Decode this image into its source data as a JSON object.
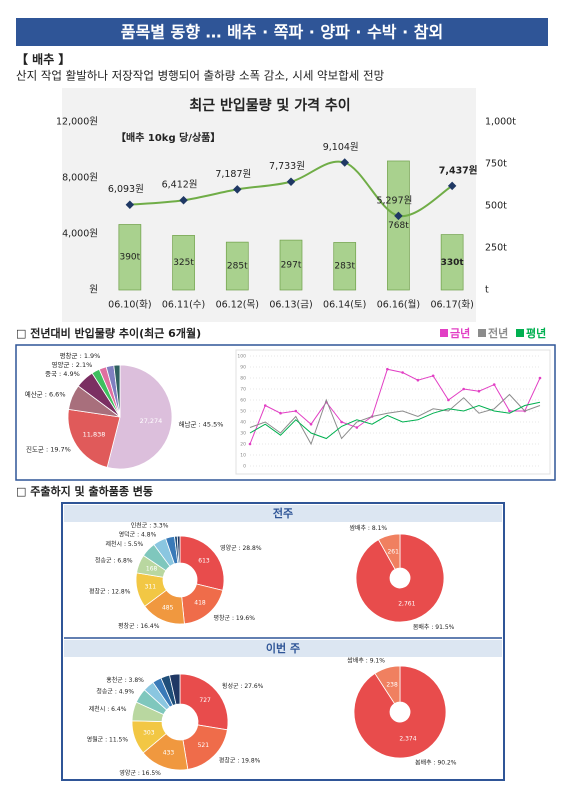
{
  "header": {
    "title": "품목별 동향 … 배추 · 쪽파 · 양파 · 수박 · 참외"
  },
  "section_title": "【 배추 】",
  "summary": "산지 작업 활발하나 저장작업 병행되어 출하량 소폭 감소, 시세 약보합세 전망",
  "section2_title": "□ 전년대비 반입물량 추이(최근 6개월)",
  "section3_title": "□ 주출하지 및 출하품종 변동",
  "panels": [
    "전주",
    "이번 주"
  ],
  "chart_data": [
    {
      "type": "combo",
      "title": "최근 반입물량 및 가격 추이",
      "note": "【배추 10kg 당/상품】",
      "categories": [
        "06.10(화)",
        "06.11(수)",
        "06.12(목)",
        "06.13(금)",
        "06.14(토)",
        "06.16(월)",
        "06.17(화)"
      ],
      "series": [
        {
          "type": "bar",
          "axis": "y2",
          "color": "#a9d18e",
          "values": [
            390,
            325,
            285,
            297,
            283,
            768,
            330
          ],
          "value_labels": [
            "390t",
            "325t",
            "285t",
            "297t",
            "283t",
            "768t",
            "330t"
          ]
        },
        {
          "type": "line",
          "color": "#70ad47",
          "marker_color": "#1f3864",
          "values": [
            6093,
            6412,
            7187,
            7733,
            9104,
            5297,
            7437
          ],
          "value_labels": [
            "6,093원",
            "6,412원",
            "7,187원",
            "7,733원",
            "9,104원",
            "5,297원",
            "7,437원"
          ]
        }
      ],
      "ylim": [
        0,
        12000
      ],
      "yticks": [
        {
          "value": 0,
          "label": "원"
        },
        {
          "value": 4000,
          "label": "4,000원"
        },
        {
          "value": 8000,
          "label": "8,000원"
        },
        {
          "value": 12000,
          "label": "12,000원"
        }
      ],
      "y2lim": [
        0,
        1000
      ],
      "y2ticks": [
        {
          "value": 0,
          "label": "t"
        },
        {
          "value": 250,
          "label": "250t"
        },
        {
          "value": 500,
          "label": "500t"
        },
        {
          "value": 750,
          "label": "750t"
        },
        {
          "value": 1000,
          "label": "1,000t"
        }
      ],
      "bold_last": true
    },
    {
      "type": "pie",
      "categories": [
        "해남군 : 45.5%",
        "진도군 : 19.7%",
        "예산군 : 6.6%",
        "중국 : 4.9%",
        "영양군 : 2.1%",
        "평창군 : 1.9%",
        null,
        null
      ],
      "values": [
        45.5,
        19.7,
        6.6,
        4.9,
        2.1,
        1.9,
        2.0,
        1.6
      ],
      "inner_labels": [
        "27,274",
        "11,838",
        null,
        null,
        null,
        null,
        null,
        null
      ],
      "colors": [
        "#dcbfdc",
        "#e05a5a",
        "#a86f7c",
        "#7b2f62",
        "#3fbf5f",
        "#e06fa0",
        "#7f7fc0",
        "#2f6060"
      ]
    },
    {
      "type": "line",
      "legend": "top-right",
      "categories": [
        null,
        null,
        null,
        null,
        null,
        null,
        null,
        null,
        null,
        null,
        null,
        null,
        null,
        null,
        null,
        null,
        null,
        null,
        null,
        null
      ],
      "series": [
        {
          "name": "금년",
          "color": "#e23fc4",
          "values": [
            20,
            55,
            48,
            50,
            38,
            58,
            40,
            35,
            45,
            88,
            85,
            78,
            82,
            60,
            70,
            68,
            74,
            50,
            50,
            80
          ]
        },
        {
          "name": "전년",
          "color": "#8c8c8c",
          "values": [
            35,
            40,
            30,
            45,
            20,
            60,
            25,
            40,
            45,
            48,
            50,
            45,
            52,
            50,
            62,
            48,
            52,
            65,
            50,
            55
          ]
        },
        {
          "name": "평년",
          "color": "#00b050",
          "values": [
            30,
            38,
            28,
            42,
            30,
            25,
            36,
            42,
            38,
            46,
            40,
            42,
            48,
            52,
            50,
            55,
            50,
            48,
            55,
            58
          ]
        }
      ],
      "ylim": [
        0,
        100
      ],
      "yticks": [
        0,
        10,
        20,
        30,
        40,
        50,
        60,
        70,
        80,
        90,
        100
      ],
      "grid": true
    },
    {
      "type": "donut",
      "categories": [
        "영양군 : 28.8%",
        "평창군 : 19.6%",
        "평창군 : 16.4%",
        "평창군 : 12.8%",
        "청송군 : 6.8%",
        "제천시 : 5.5%",
        "영덕군 : 4.8%",
        "인천군 : 3.3%",
        null,
        null
      ],
      "values": [
        28.8,
        19.6,
        16.4,
        12.8,
        6.8,
        5.5,
        4.8,
        3.3,
        1.0,
        1.0
      ],
      "inner_labels": [
        "613",
        "418",
        "485",
        "311",
        "168",
        null,
        null,
        null,
        null,
        null
      ],
      "colors": [
        "#e84c4c",
        "#ef6c4a",
        "#f0983f",
        "#f2c744",
        "#b9d7a0",
        "#7fc7bd",
        "#8ac6e0",
        "#3a7ab8",
        "#1f4e79",
        "#203864"
      ]
    },
    {
      "type": "donut",
      "categories": [
        "봄배추 : 91.5%",
        "쌈배추 : 8.1%"
      ],
      "values": [
        91.5,
        8.1
      ],
      "inner_labels": [
        "2,761",
        "261"
      ],
      "colors": [
        "#e84c4c",
        "#f08060"
      ]
    },
    {
      "type": "donut",
      "categories": [
        "횡성군 : 27.6%",
        "평창군 : 19.8%",
        "영양군 : 16.5%",
        "영월군 : 11.5%",
        "제천시 : 6.4%",
        "청송군 : 4.9%",
        "홍천군 : 3.8%",
        null,
        null,
        null
      ],
      "values": [
        27.6,
        19.8,
        16.5,
        11.5,
        6.4,
        4.9,
        3.8,
        3.0,
        3.0,
        3.5
      ],
      "inner_labels": [
        "727",
        "521",
        "433",
        "303",
        null,
        null,
        null,
        null,
        null,
        null
      ],
      "colors": [
        "#e84c4c",
        "#ef6c4a",
        "#f0983f",
        "#f2c744",
        "#b9d7a0",
        "#7fc7bd",
        "#8ac6e0",
        "#3a7ab8",
        "#1f4e79",
        "#203864"
      ]
    },
    {
      "type": "donut",
      "categories": [
        "봄배추 : 90.2%",
        "쌈배추 : 9.1%"
      ],
      "values": [
        90.2,
        9.1
      ],
      "inner_labels": [
        "2,374",
        "238"
      ],
      "colors": [
        "#e84c4c",
        "#f08060"
      ]
    }
  ]
}
